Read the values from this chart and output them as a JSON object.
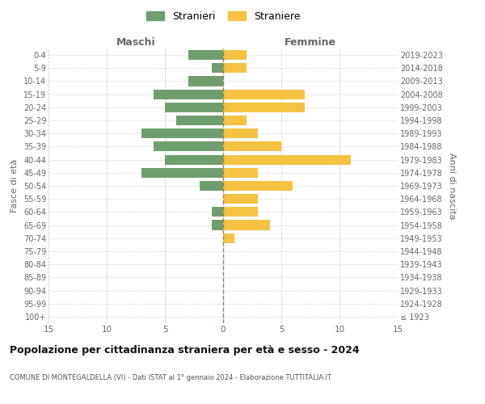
{
  "age_groups": [
    "100+",
    "95-99",
    "90-94",
    "85-89",
    "80-84",
    "75-79",
    "70-74",
    "65-69",
    "60-64",
    "55-59",
    "50-54",
    "45-49",
    "40-44",
    "35-39",
    "30-34",
    "25-29",
    "20-24",
    "15-19",
    "10-14",
    "5-9",
    "0-4"
  ],
  "birth_years": [
    "≤ 1923",
    "1924-1928",
    "1929-1933",
    "1934-1938",
    "1939-1943",
    "1944-1948",
    "1949-1953",
    "1954-1958",
    "1959-1963",
    "1964-1968",
    "1969-1973",
    "1974-1978",
    "1979-1983",
    "1984-1988",
    "1989-1993",
    "1994-1998",
    "1999-2003",
    "2004-2008",
    "2009-2013",
    "2014-2018",
    "2019-2023"
  ],
  "males": [
    0,
    0,
    0,
    0,
    0,
    0,
    0,
    1,
    1,
    0,
    2,
    7,
    5,
    6,
    7,
    4,
    5,
    6,
    3,
    1,
    3
  ],
  "females": [
    0,
    0,
    0,
    0,
    0,
    0,
    1,
    4,
    3,
    3,
    6,
    3,
    11,
    5,
    3,
    2,
    7,
    7,
    0,
    2,
    2
  ],
  "male_color": "#6e9e6e",
  "female_color": "#f5c242",
  "background_color": "#ffffff",
  "grid_color": "#cccccc",
  "title": "Popolazione per cittadinanza straniera per età e sesso - 2024",
  "subtitle": "COMUNE DI MONTEGALDELLA (VI) - Dati ISTAT al 1° gennaio 2024 - Elaborazione TUTTITALIA.IT",
  "xlabel_left": "Maschi",
  "xlabel_right": "Femmine",
  "ylabel_left": "Fasce di età",
  "ylabel_right": "Anni di nascita",
  "legend_stranieri": "Stranieri",
  "legend_straniere": "Straniere",
  "xlim": 15,
  "bar_height": 0.75
}
